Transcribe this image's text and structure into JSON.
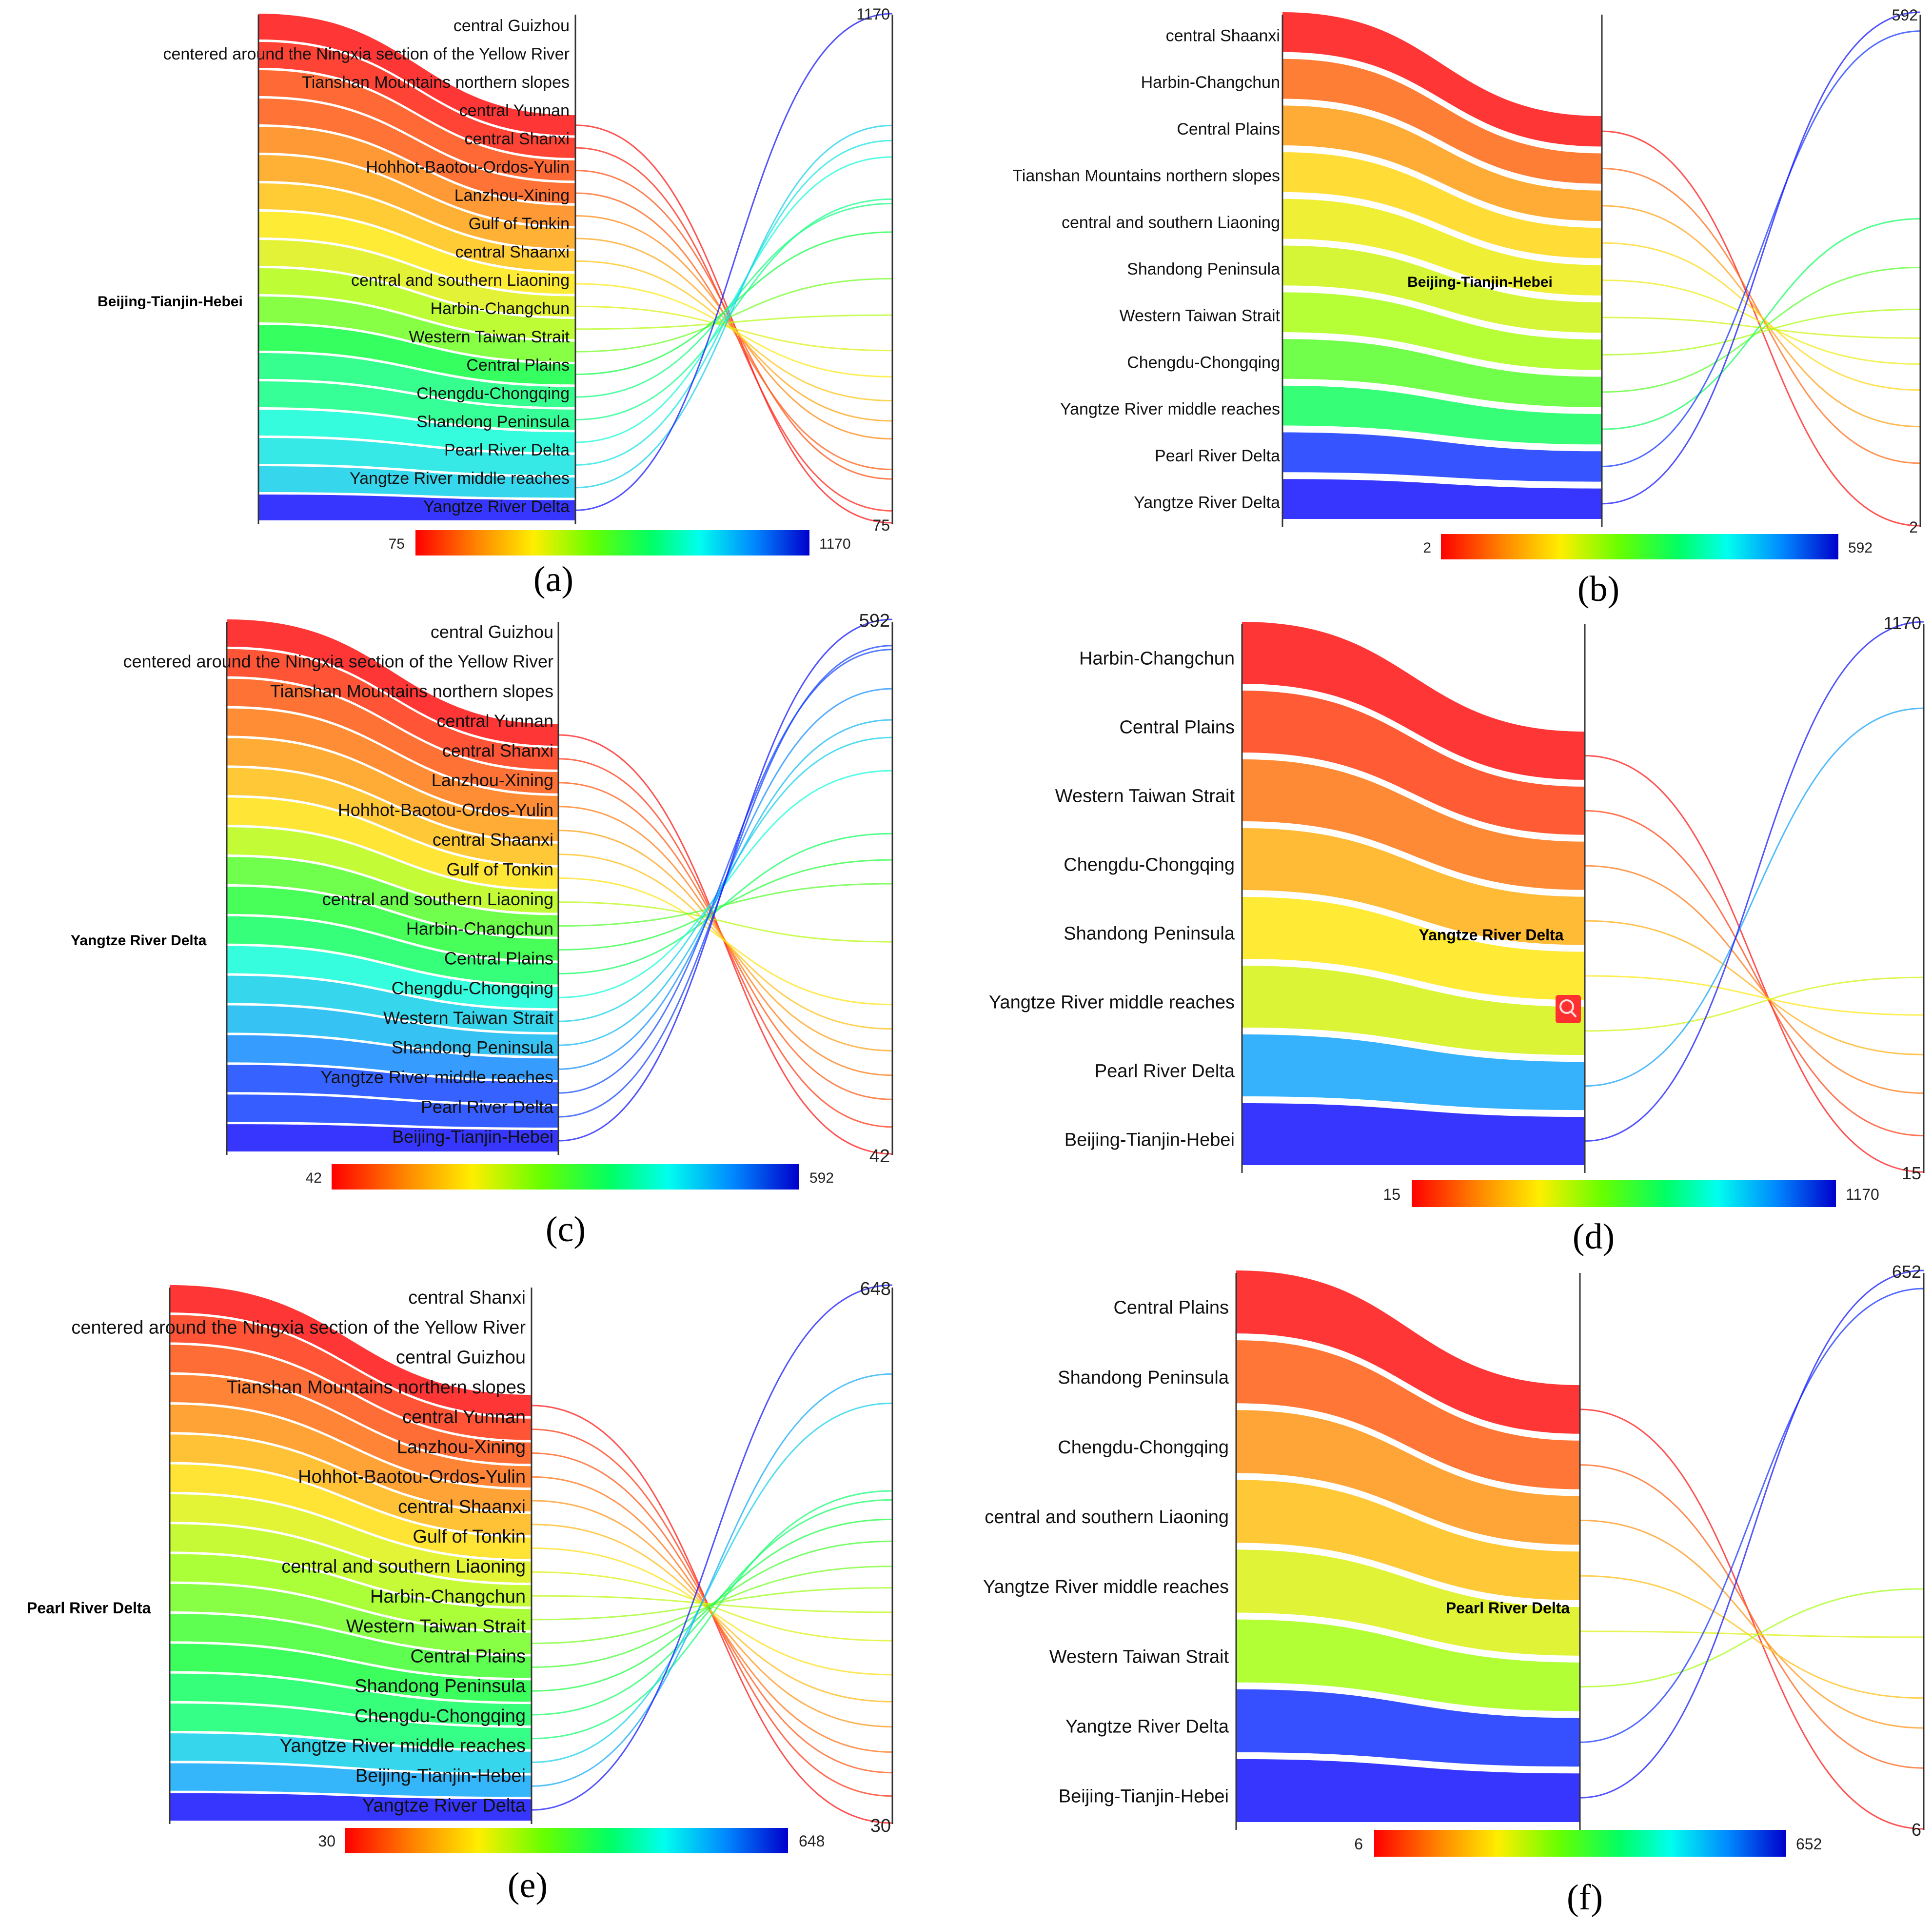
{
  "colors": {
    "ramp": [
      "#ff1a1a",
      "#ff7a1a",
      "#ffe81a",
      "#a8ff1a",
      "#1aff4a",
      "#1affd8",
      "#1a9cff",
      "#1a1aff"
    ],
    "axis": "#333333"
  },
  "chart_data": [
    {
      "type": "sankey-parallel",
      "caption": "(a)",
      "source": "Beijing-Tianjin-Hebei",
      "axis_min_label": "75",
      "axis_max_label": "1170",
      "colorbar_min": "75",
      "colorbar_max": "1170",
      "range": [
        75,
        1170
      ],
      "flows": [
        {
          "target": "central Guizhou",
          "value": 75
        },
        {
          "target": "centered around the Ningxia section of the Yellow River",
          "value": 80
        },
        {
          "target": "Tianshan Mountains northern slopes",
          "value": 95
        },
        {
          "target": "central Yunnan",
          "value": 100
        },
        {
          "target": "central Shanxi",
          "value": 118
        },
        {
          "target": "Hohhot-Baotou-Ordos-Yulin",
          "value": 130
        },
        {
          "target": "Lanzhou-Xining",
          "value": 145
        },
        {
          "target": "Gulf of Tonkin",
          "value": 165
        },
        {
          "target": "central Shaanxi",
          "value": 190
        },
        {
          "target": "central and southern Liaoning",
          "value": 230
        },
        {
          "target": "Harbin-Changchun",
          "value": 280
        },
        {
          "target": "Western Taiwan Strait",
          "value": 360
        },
        {
          "target": "Central Plains",
          "value": 420
        },
        {
          "target": "Chengdu-Chongqing",
          "value": 430
        },
        {
          "target": "Shandong Peninsula",
          "value": 540
        },
        {
          "target": "Pearl River Delta",
          "value": 590
        },
        {
          "target": "Yangtze River middle reaches",
          "value": 640
        },
        {
          "target": "Yangtze River Delta",
          "value": 1170
        }
      ]
    },
    {
      "type": "sankey-parallel",
      "caption": "(b)",
      "source": "Beijing-Tianjin-Hebei",
      "axis_min_label": "2",
      "axis_max_label": "592",
      "colorbar_min": "2",
      "colorbar_max": "592",
      "range": [
        2,
        592
      ],
      "flows": [
        {
          "target": "central Shaanxi",
          "value": 2
        },
        {
          "target": "Harbin-Changchun",
          "value": 4
        },
        {
          "target": "Central Plains",
          "value": 6
        },
        {
          "target": "Tianshan Mountains northern slopes",
          "value": 9
        },
        {
          "target": "central and southern Liaoning",
          "value": 12
        },
        {
          "target": "Shandong Peninsula",
          "value": 16
        },
        {
          "target": "Western Taiwan Strait",
          "value": 22
        },
        {
          "target": "Chengdu-Chongqing",
          "value": 35
        },
        {
          "target": "Yangtze River middle reaches",
          "value": 60
        },
        {
          "target": "Pearl River Delta",
          "value": 480
        },
        {
          "target": "Yangtze River Delta",
          "value": 592
        }
      ]
    },
    {
      "type": "sankey-parallel",
      "caption": "(c)",
      "source": "Yangtze River Delta",
      "axis_min_label": "42",
      "axis_max_label": "592",
      "colorbar_min": "42",
      "colorbar_max": "592",
      "range": [
        42,
        592
      ],
      "flows": [
        {
          "target": "central Guizhou",
          "value": 42
        },
        {
          "target": "centered around the Ningxia section of the Yellow River",
          "value": 48
        },
        {
          "target": "Tianshan Mountains northern slopes",
          "value": 55
        },
        {
          "target": "central Yunnan",
          "value": 62
        },
        {
          "target": "central Shanxi",
          "value": 70
        },
        {
          "target": "Lanzhou-Xining",
          "value": 78
        },
        {
          "target": "Hohhot-Baotou-Ordos-Yulin",
          "value": 88
        },
        {
          "target": "central Shaanxi",
          "value": 120
        },
        {
          "target": "Gulf of Tonkin",
          "value": 160
        },
        {
          "target": "central and southern Liaoning",
          "value": 180
        },
        {
          "target": "Harbin-Changchun",
          "value": 205
        },
        {
          "target": "Central Plains",
          "value": 280
        },
        {
          "target": "Chengdu-Chongqing",
          "value": 330
        },
        {
          "target": "Western Taiwan Strait",
          "value": 360
        },
        {
          "target": "Shandong Peninsula",
          "value": 420
        },
        {
          "target": "Yangtze River middle reaches",
          "value": 510
        },
        {
          "target": "Pearl River Delta",
          "value": 520
        },
        {
          "target": "Beijing-Tianjin-Hebei",
          "value": 592
        }
      ]
    },
    {
      "type": "sankey-parallel",
      "caption": "(d)",
      "source": "Yangtze River Delta",
      "axis_min_label": "15",
      "axis_max_label": "1170",
      "colorbar_min": "15",
      "colorbar_max": "1170",
      "range": [
        15,
        1170
      ],
      "flows": [
        {
          "target": "Harbin-Changchun",
          "value": 15
        },
        {
          "target": "Central Plains",
          "value": 20
        },
        {
          "target": "Western Taiwan Strait",
          "value": 28
        },
        {
          "target": "Chengdu-Chongqing",
          "value": 38
        },
        {
          "target": "Shandong Peninsula",
          "value": 52
        },
        {
          "target": "Yangtze River middle reaches",
          "value": 70
        },
        {
          "target": "Pearl River Delta",
          "value": 590
        },
        {
          "target": "Beijing-Tianjin-Hebei",
          "value": 1170
        }
      ]
    },
    {
      "type": "sankey-parallel",
      "caption": "(e)",
      "source": "Pearl River Delta",
      "axis_min_label": "30",
      "axis_max_label": "648",
      "colorbar_min": "30",
      "colorbar_max": "648",
      "range": [
        30,
        648
      ],
      "flows": [
        {
          "target": "central Shanxi",
          "value": 30
        },
        {
          "target": "centered around the Ningxia section of the Yellow River",
          "value": 35
        },
        {
          "target": "central Guizhou",
          "value": 40
        },
        {
          "target": "Tianshan Mountains northern slopes",
          "value": 45
        },
        {
          "target": "central Yunnan",
          "value": 52
        },
        {
          "target": "Lanzhou-Xining",
          "value": 60
        },
        {
          "target": "Hohhot-Baotou-Ordos-Yulin",
          "value": 70
        },
        {
          "target": "central Shaanxi",
          "value": 85
        },
        {
          "target": "Gulf of Tonkin",
          "value": 100
        },
        {
          "target": "central and southern Liaoning",
          "value": 115
        },
        {
          "target": "Harbin-Changchun",
          "value": 130
        },
        {
          "target": "Western Taiwan Strait",
          "value": 150
        },
        {
          "target": "Central Plains",
          "value": 170
        },
        {
          "target": "Shandong Peninsula",
          "value": 190
        },
        {
          "target": "Chengdu-Chongqing",
          "value": 200
        },
        {
          "target": "Yangtze River middle reaches",
          "value": 330
        },
        {
          "target": "Beijing-Tianjin-Hebei",
          "value": 390
        },
        {
          "target": "Yangtze River Delta",
          "value": 648
        }
      ]
    },
    {
      "type": "sankey-parallel",
      "caption": "(f)",
      "source": "Pearl River Delta",
      "axis_min_label": "6",
      "axis_max_label": "652",
      "colorbar_min": "6",
      "colorbar_max": "652",
      "range": [
        6,
        652
      ],
      "flows": [
        {
          "target": "Central Plains",
          "value": 6
        },
        {
          "target": "Shandong Peninsula",
          "value": 10
        },
        {
          "target": "Chengdu-Chongqing",
          "value": 14
        },
        {
          "target": "central and southern Liaoning",
          "value": 18
        },
        {
          "target": "Yangtze River middle reaches",
          "value": 30
        },
        {
          "target": "Western Taiwan Strait",
          "value": 45
        },
        {
          "target": "Yangtze River Delta",
          "value": 560
        },
        {
          "target": "Beijing-Tianjin-Hebei",
          "value": 652
        }
      ]
    }
  ]
}
